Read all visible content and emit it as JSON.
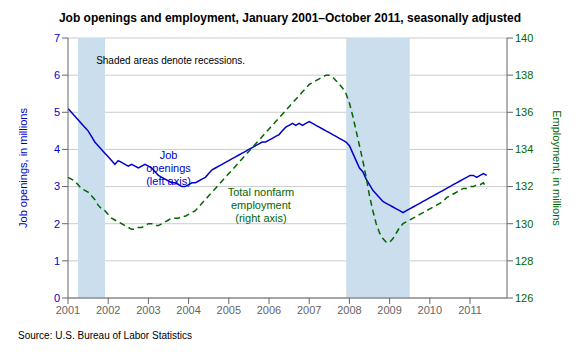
{
  "chart_data": {
    "type": "line",
    "title": "Job openings and employment, January 2001–October 2011, seasonally adjusted",
    "source": "Source: U.S. Bureau of Labor Statistics",
    "ylabel": "Job openings, in millions",
    "y2label": "Employment, in millions",
    "x": [
      2001,
      2001.0833,
      2001.1667,
      2001.25,
      2001.3333,
      2001.4167,
      2001.5,
      2001.5833,
      2001.6667,
      2001.75,
      2001.8333,
      2001.9167,
      2002,
      2002.0833,
      2002.1667,
      2002.25,
      2002.3333,
      2002.4167,
      2002.5,
      2002.5833,
      2002.6667,
      2002.75,
      2002.8333,
      2002.9167,
      2003,
      2003.0833,
      2003.1667,
      2003.25,
      2003.3333,
      2003.4167,
      2003.5,
      2003.5833,
      2003.6667,
      2003.75,
      2003.8333,
      2003.9167,
      2004,
      2004.0833,
      2004.1667,
      2004.25,
      2004.3333,
      2004.4167,
      2004.5,
      2004.5833,
      2004.6667,
      2004.75,
      2004.8333,
      2004.9167,
      2005,
      2005.0833,
      2005.1667,
      2005.25,
      2005.3333,
      2005.4167,
      2005.5,
      2005.5833,
      2005.6667,
      2005.75,
      2005.8333,
      2005.9167,
      2006,
      2006.0833,
      2006.1667,
      2006.25,
      2006.3333,
      2006.4167,
      2006.5,
      2006.5833,
      2006.6667,
      2006.75,
      2006.8333,
      2006.9167,
      2007,
      2007.0833,
      2007.1667,
      2007.25,
      2007.3333,
      2007.4167,
      2007.5,
      2007.5833,
      2007.6667,
      2007.75,
      2007.8333,
      2007.9167,
      2008,
      2008.0833,
      2008.1667,
      2008.25,
      2008.3333,
      2008.4167,
      2008.5,
      2008.5833,
      2008.6667,
      2008.75,
      2008.8333,
      2008.9167,
      2009,
      2009.0833,
      2009.1667,
      2009.25,
      2009.3333,
      2009.4167,
      2009.5,
      2009.5833,
      2009.6667,
      2009.75,
      2009.8333,
      2009.9167,
      2010,
      2010.0833,
      2010.1667,
      2010.25,
      2010.3333,
      2010.4167,
      2010.5,
      2010.5833,
      2010.6667,
      2010.75,
      2010.8333,
      2010.9167,
      2011,
      2011.0833,
      2011.1667,
      2011.25,
      2011.3333,
      2011.4167
    ],
    "xlim": [
      2001.0,
      2011.92
    ],
    "xticks": [
      2001,
      2002,
      2003,
      2004,
      2005,
      2006,
      2007,
      2008,
      2009,
      2010,
      2011
    ],
    "ylim": [
      0,
      7
    ],
    "yticks": [
      0,
      1,
      2,
      3,
      4,
      5,
      6,
      7
    ],
    "y2lim": [
      126,
      140
    ],
    "y2ticks": [
      126,
      128,
      130,
      132,
      134,
      136,
      138,
      140
    ],
    "grid": true,
    "shade_color": "#CADEED",
    "shaded_ranges": [
      [
        2001.25,
        2001.92
      ],
      [
        2007.92,
        2009.5
      ]
    ],
    "note": {
      "text": "Shaded areas denote recessions.",
      "x": 2001.7,
      "y": 6.5
    },
    "series": [
      {
        "name": "Job\nopenings\n(left axis)",
        "color": "#0000CC",
        "line_style": "solid",
        "label_at": {
          "x": 2003.5,
          "y": 3.5
        },
        "values": [
          5.1,
          5.0,
          4.9,
          4.8,
          4.7,
          4.6,
          4.5,
          4.35,
          4.2,
          4.1,
          4.0,
          3.9,
          3.8,
          3.7,
          3.6,
          3.7,
          3.65,
          3.6,
          3.55,
          3.6,
          3.55,
          3.5,
          3.55,
          3.6,
          3.55,
          3.5,
          3.4,
          3.3,
          3.25,
          3.2,
          3.15,
          3.1,
          3.1,
          3.05,
          3.0,
          3.0,
          3.05,
          3.1,
          3.1,
          3.15,
          3.2,
          3.25,
          3.35,
          3.45,
          3.5,
          3.55,
          3.6,
          3.65,
          3.7,
          3.75,
          3.8,
          3.85,
          3.9,
          3.95,
          4.0,
          4.05,
          4.1,
          4.15,
          4.2,
          4.2,
          4.25,
          4.3,
          4.35,
          4.4,
          4.5,
          4.6,
          4.65,
          4.7,
          4.65,
          4.7,
          4.65,
          4.7,
          4.75,
          4.7,
          4.65,
          4.6,
          4.55,
          4.5,
          4.45,
          4.4,
          4.35,
          4.3,
          4.25,
          4.2,
          4.1,
          3.9,
          3.7,
          3.5,
          3.4,
          3.2,
          3.05,
          2.9,
          2.8,
          2.7,
          2.6,
          2.55,
          2.5,
          2.45,
          2.4,
          2.35,
          2.3,
          2.35,
          2.4,
          2.45,
          2.5,
          2.55,
          2.6,
          2.65,
          2.7,
          2.75,
          2.8,
          2.85,
          2.9,
          2.95,
          3.0,
          3.05,
          3.1,
          3.15,
          3.2,
          3.25,
          3.3,
          3.3,
          3.25,
          3.3,
          3.35,
          3.3
        ]
      },
      {
        "name": "Total nonfarm\nemployment\n(right axis)",
        "color": "#006600",
        "line_style": "dashed",
        "axis": "y2",
        "label_at": {
          "x": 2005.8,
          "y": 2.5
        },
        "values": [
          132.5,
          132.4,
          132.3,
          132.1,
          131.9,
          131.8,
          131.7,
          131.5,
          131.3,
          131.0,
          130.8,
          130.7,
          130.5,
          130.3,
          130.2,
          130.1,
          130.0,
          129.9,
          129.8,
          129.7,
          129.7,
          129.8,
          129.8,
          129.9,
          130.0,
          130.0,
          129.9,
          129.9,
          130.0,
          130.1,
          130.2,
          130.3,
          130.3,
          130.3,
          130.4,
          130.4,
          130.5,
          130.6,
          130.7,
          130.9,
          131.1,
          131.3,
          131.5,
          131.7,
          131.9,
          132.1,
          132.3,
          132.5,
          132.7,
          132.9,
          133.1,
          133.3,
          133.5,
          133.7,
          133.9,
          134.1,
          134.3,
          134.5,
          134.7,
          134.9,
          135.1,
          135.3,
          135.5,
          135.7,
          135.9,
          136.1,
          136.3,
          136.5,
          136.7,
          136.9,
          137.1,
          137.3,
          137.5,
          137.6,
          137.7,
          137.8,
          137.9,
          138.0,
          138.0,
          137.9,
          137.7,
          137.5,
          137.3,
          137.0,
          136.5,
          135.8,
          135.0,
          134.2,
          133.4,
          132.5,
          131.5,
          130.7,
          130.0,
          129.5,
          129.2,
          129.0,
          129.0,
          129.2,
          129.5,
          129.8,
          130.0,
          130.1,
          130.2,
          130.3,
          130.4,
          130.5,
          130.6,
          130.7,
          130.8,
          130.9,
          131.0,
          131.1,
          131.2,
          131.4,
          131.5,
          131.6,
          131.7,
          131.8,
          131.9,
          131.9,
          132.0,
          132.0,
          132.1,
          132.1,
          132.2,
          131.9
        ]
      }
    ]
  }
}
